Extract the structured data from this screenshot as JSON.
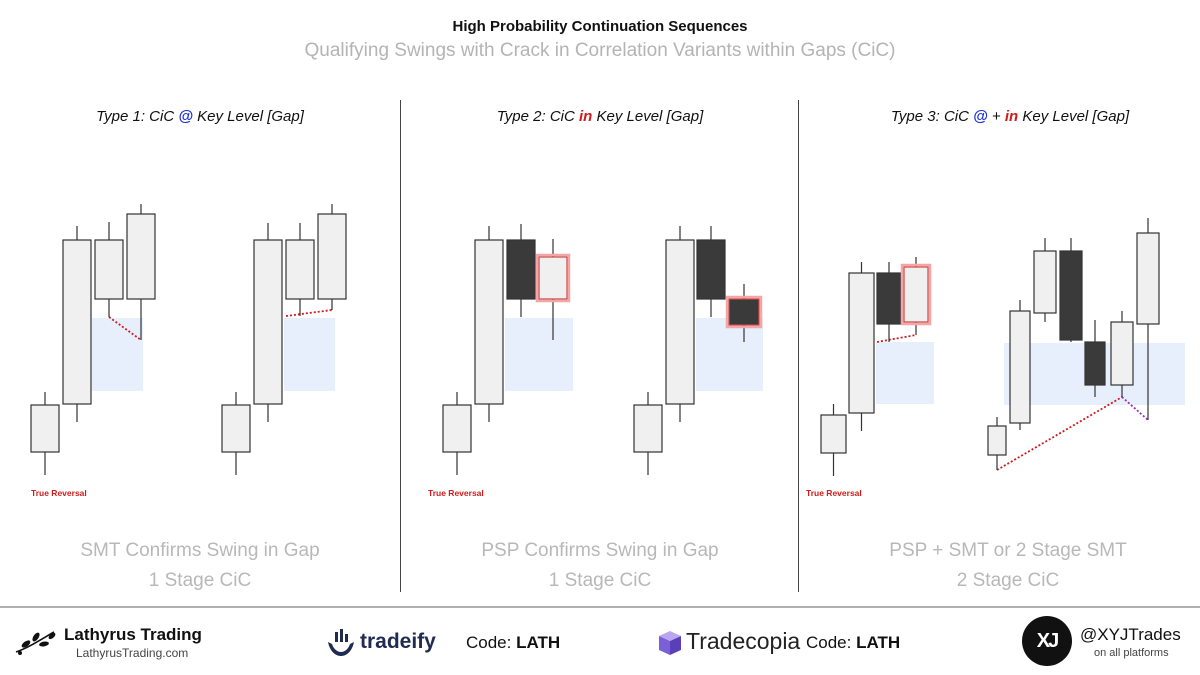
{
  "header": {
    "title": "High Probability Continuation Sequences",
    "subtitle": "Qualifying Swings with Crack in Correlation Variants within Gaps (CiC)"
  },
  "panels": [
    {
      "title_pre": "Type 1: CiC ",
      "title_mid1": "@",
      "title_plus": "",
      "title_mid2": "",
      "title_post": " Key Level [Gap]",
      "caption_line1": "SMT Confirms Swing in Gap",
      "caption_line2": "1 Stage CiC",
      "reversal_label": "True Reversal"
    },
    {
      "title_pre": "Type 2: CiC ",
      "title_mid1": "",
      "title_plus": "",
      "title_mid2": "in",
      "title_post": " Key Level [Gap]",
      "caption_line1": "PSP Confirms Swing in Gap",
      "caption_line2": "1 Stage CiC",
      "reversal_label": "True Reversal"
    },
    {
      "title_pre": "Type 3: CiC ",
      "title_mid1": "@",
      "title_plus": " + ",
      "title_mid2": "in",
      "title_post": " Key Level [Gap]",
      "caption_line1": "PSP + SMT or 2 Stage SMT",
      "caption_line2": "2 Stage CiC",
      "reversal_label": "True Reversal"
    }
  ],
  "colors": {
    "bull_fill": "#f0f0f0",
    "bear_fill": "#3a3a3a",
    "gap_fill": "#e6eefc",
    "smt_line": "#d01b1b",
    "smt_line_2": "#9b30b0",
    "psp_highlight": "#f3a6a6",
    "at_color": "#1b2fd0",
    "in_color": "#d01b1b"
  },
  "footer": {
    "brand_name": "Lathyrus Trading",
    "brand_url": "LathyrusTrading.com",
    "sponsor1_name": "tradeify",
    "sponsor1_code_label": "Code: ",
    "sponsor1_code": "LATH",
    "sponsor2_name": "Tradecopia",
    "sponsor2_code_label": "Code: ",
    "sponsor2_code": "LATH",
    "handle_logo_text": "XJ",
    "handle": "@XYJTrades",
    "handle_sub": "on all platforms"
  }
}
